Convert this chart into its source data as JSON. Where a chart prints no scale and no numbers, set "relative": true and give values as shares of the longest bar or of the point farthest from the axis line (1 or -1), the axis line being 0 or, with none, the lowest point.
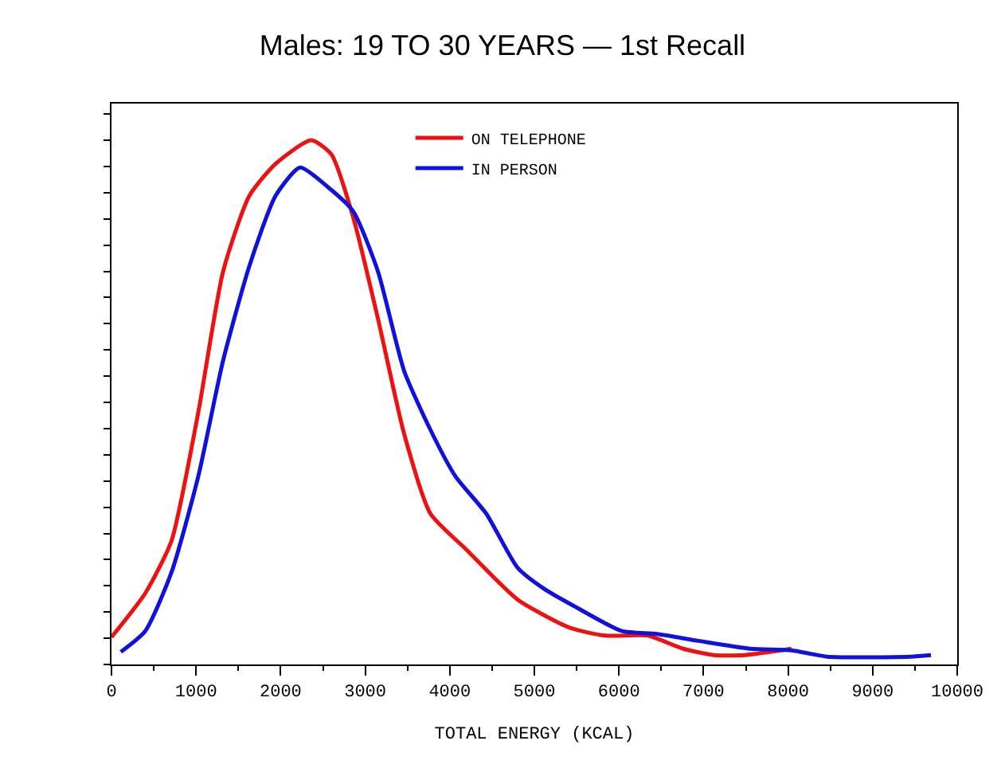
{
  "chart_data": {
    "type": "line",
    "title": "Males: 19 TO 30 YEARS — 1st Recall",
    "xlabel": "TOTAL ENERGY (KCAL)",
    "relative": true,
    "xlim": [
      0,
      10000
    ],
    "xticks": [
      0,
      1000,
      2000,
      3000,
      4000,
      5000,
      6000,
      7000,
      8000,
      9000,
      10000
    ],
    "tick_labels": "x",
    "legend": "top",
    "marker": "none",
    "line_style": "solid",
    "series": [
      {
        "name": "ON TELEPHONE",
        "color": "#ee1111",
        "x": [
          0,
          400,
          710,
          1025,
          1320,
          1630,
          1940,
          2360,
          2600,
          2860,
          3150,
          3460,
          3770,
          4190,
          4800,
          5420,
          5840,
          6340,
          6760,
          7120,
          7490,
          8040
        ],
        "values": [
          0.052,
          0.136,
          0.236,
          0.48,
          0.75,
          0.894,
          0.955,
          1.0,
          0.973,
          0.852,
          0.66,
          0.44,
          0.288,
          0.22,
          0.124,
          0.07,
          0.055,
          0.055,
          0.03,
          0.018,
          0.018,
          0.03
        ]
      },
      {
        "name": "IN PERSON",
        "color": "#1111dd",
        "x": [
          110,
          400,
          710,
          1025,
          1320,
          1630,
          1940,
          2230,
          2550,
          2860,
          3150,
          3460,
          3770,
          4070,
          4430,
          4800,
          5110,
          5530,
          6030,
          6450,
          6940,
          7550,
          8040,
          8460,
          9450,
          9690
        ],
        "values": [
          0.024,
          0.064,
          0.176,
          0.358,
          0.58,
          0.76,
          0.894,
          0.948,
          0.912,
          0.864,
          0.75,
          0.56,
          0.448,
          0.358,
          0.288,
          0.185,
          0.145,
          0.106,
          0.064,
          0.058,
          0.045,
          0.03,
          0.027,
          0.015,
          0.015,
          0.018
        ]
      }
    ]
  }
}
